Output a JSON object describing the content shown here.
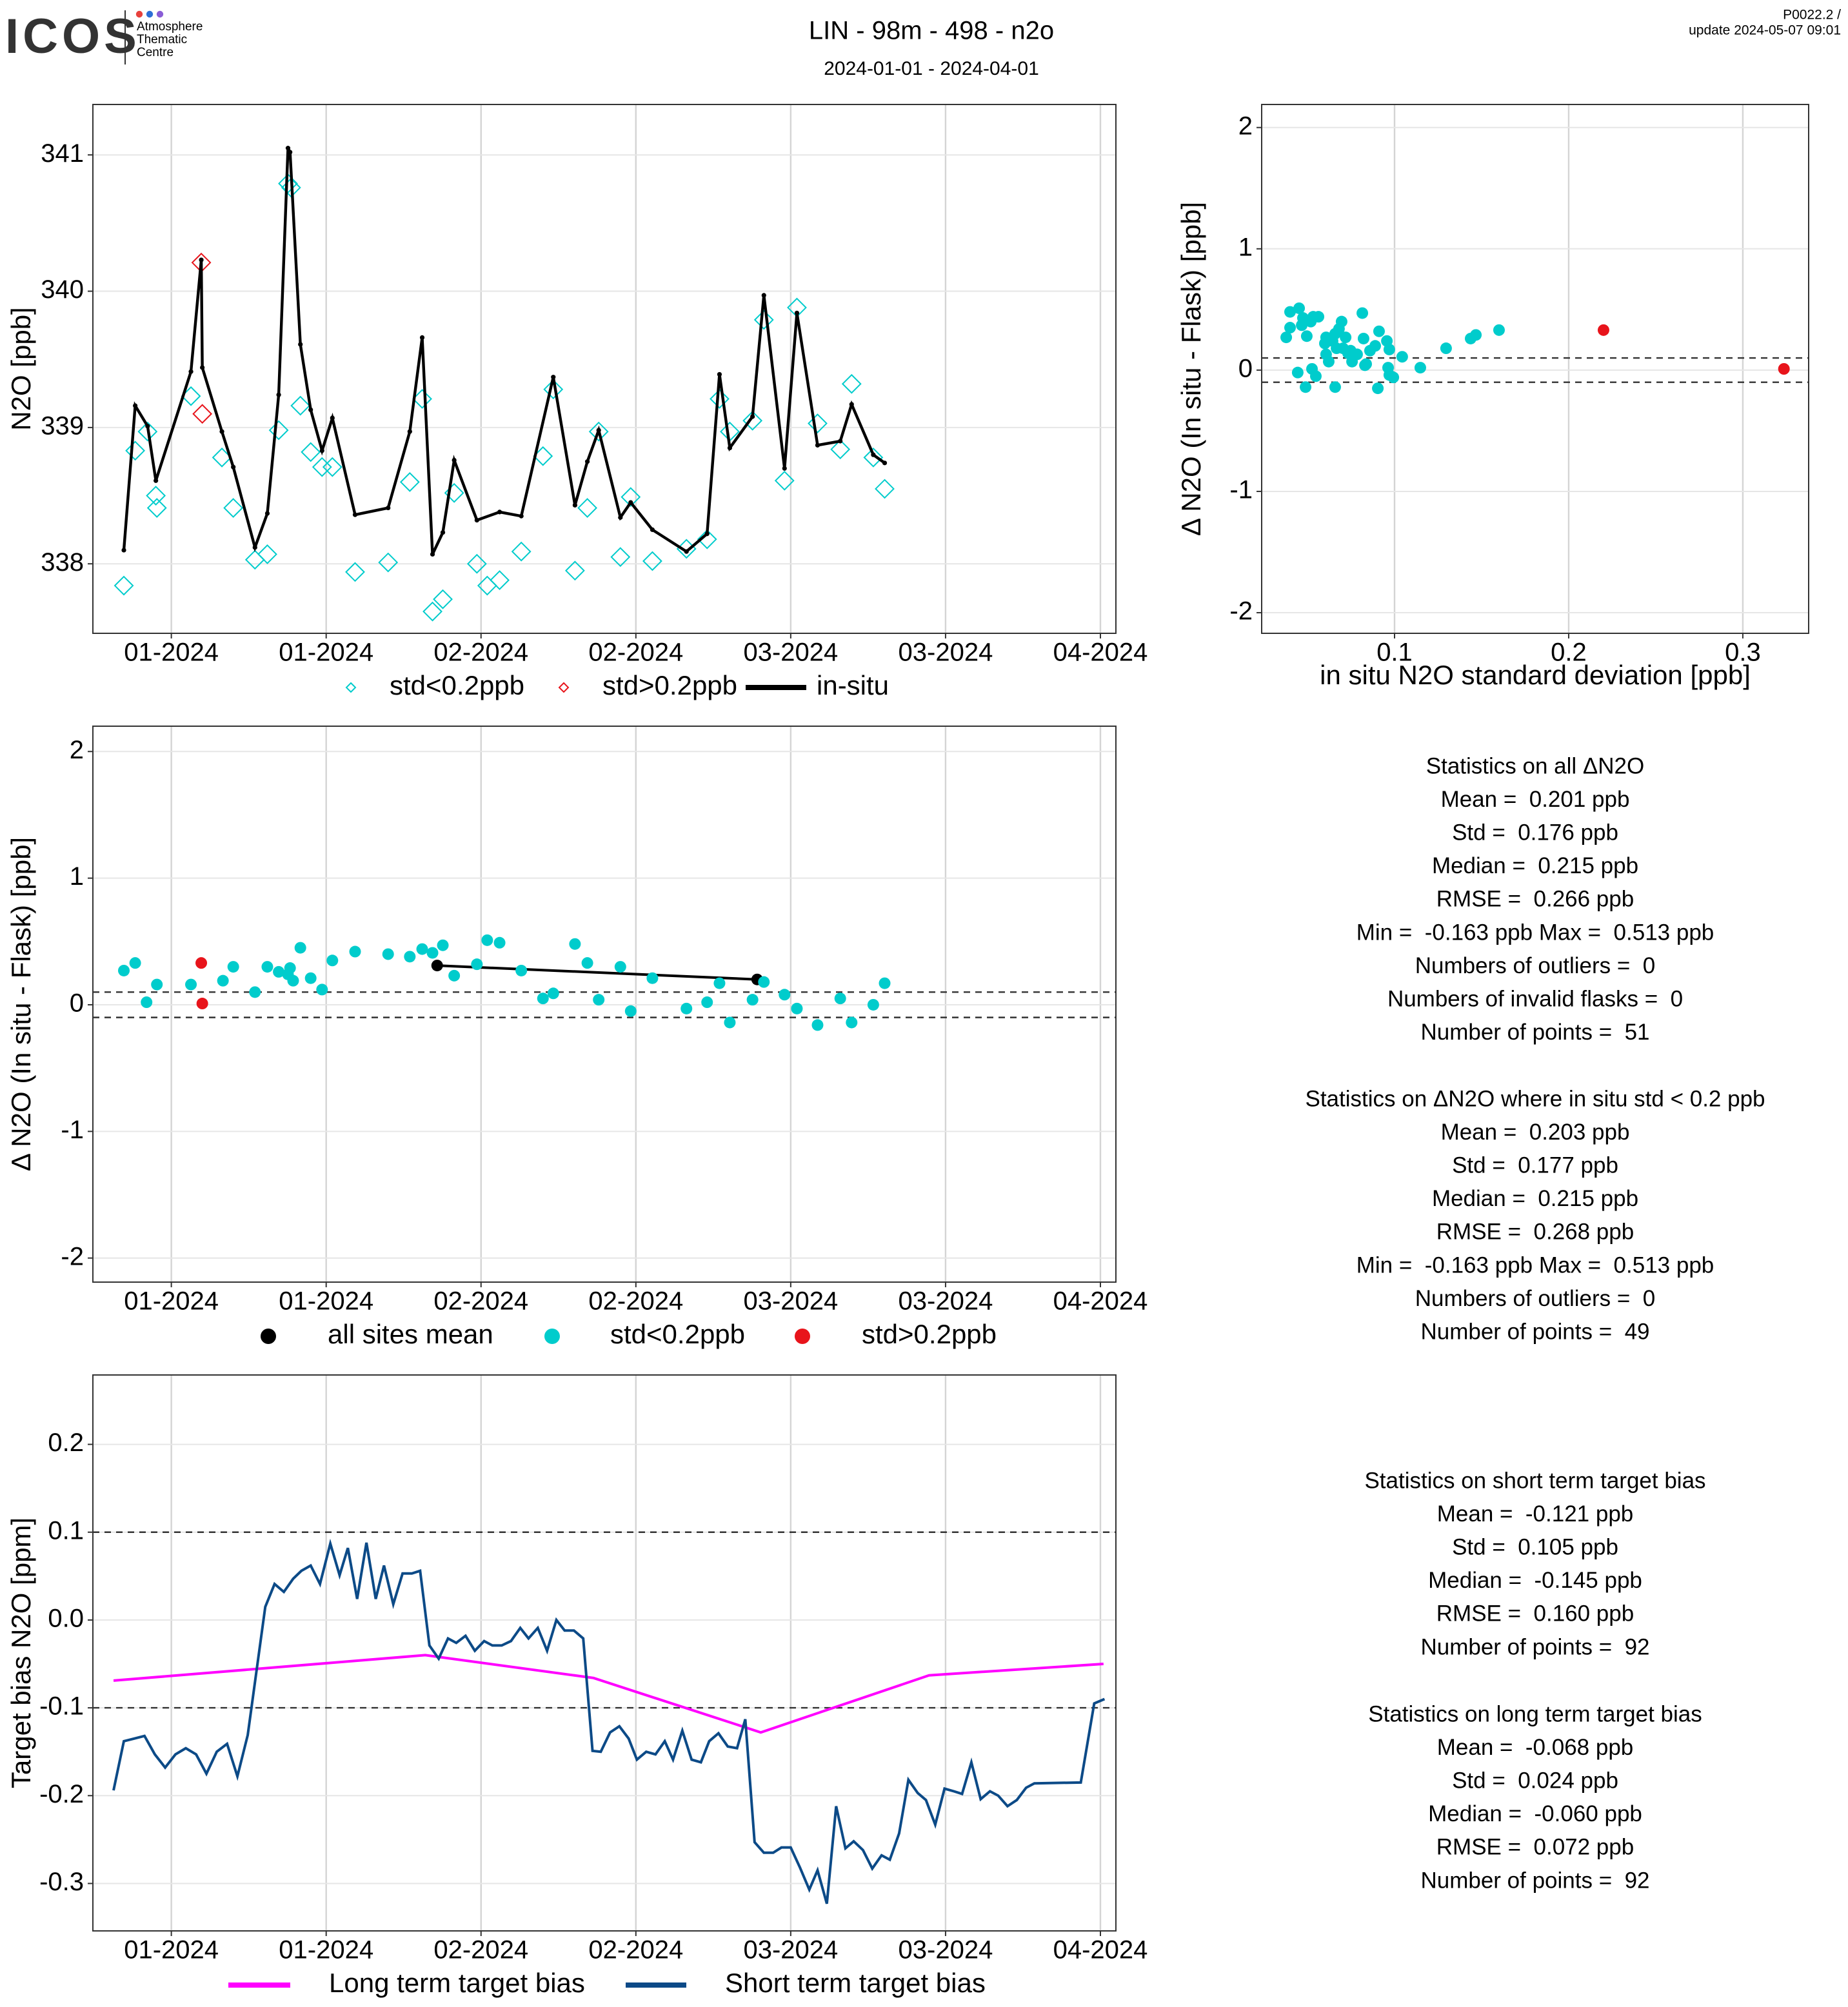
{
  "header": {
    "logo": "ICOS",
    "logo_subtitle": [
      "Atmosphere",
      "Thematic",
      "Centre"
    ],
    "title": "LIN - 98m - 498 - n2o",
    "subtitle": "2024-01-01 - 2024-04-01",
    "corner": [
      "P0022.2 /",
      "update  2024-05-07 09:01"
    ]
  },
  "chart_data": [
    {
      "type": "line",
      "ylabel": "N2O [ppb]",
      "grid": true,
      "xlim": [
        -6.6,
        92.5
      ],
      "xticks": [
        {
          "value": 1,
          "label": "01-2024"
        },
        {
          "value": 16,
          "label": "01-2024"
        },
        {
          "value": 31,
          "label": "02-2024"
        },
        {
          "value": 46,
          "label": "02-2024"
        },
        {
          "value": 61,
          "label": "03-2024"
        },
        {
          "value": 76,
          "label": "03-2024"
        },
        {
          "value": 91,
          "label": "04-2024"
        }
      ],
      "ylim": [
        337.49,
        341.37
      ],
      "yticks": [
        338,
        339,
        340,
        341
      ],
      "series": [
        {
          "name": "std<0.2ppb",
          "type": "scatter",
          "marker": "diamond",
          "color": "#00cccc",
          "x": [
            -3.6,
            -2.5,
            -1.3,
            -0.5,
            -0.4,
            2.9,
            5.9,
            7,
            9.1,
            10.3,
            11.4,
            12.3,
            12.6,
            13.5,
            14.5,
            15.6,
            16.6,
            18.8,
            22,
            24.1,
            25.3,
            26.3,
            27.3,
            28.4,
            30.6,
            31.6,
            32.8,
            34.9,
            37,
            38,
            40.1,
            41.3,
            42.4,
            44.5,
            45.5,
            47.6,
            50.9,
            52.9,
            54.1,
            55.1,
            57.3,
            58.4,
            60.4,
            61.6,
            63.6,
            65.8,
            66.9,
            69,
            70.1
          ],
          "values": [
            337.84,
            338.83,
            338.97,
            338.5,
            338.41,
            339.23,
            338.78,
            338.41,
            338.03,
            338.07,
            338.98,
            340.79,
            340.76,
            339.16,
            338.82,
            338.71,
            338.71,
            337.94,
            338.01,
            338.6,
            339.21,
            337.65,
            337.74,
            338.52,
            338.0,
            337.84,
            337.88,
            338.09,
            338.79,
            339.28,
            337.95,
            338.41,
            338.97,
            338.05,
            338.49,
            338.02,
            338.11,
            338.18,
            339.21,
            338.97,
            339.05,
            339.79,
            338.61,
            339.88,
            339.03,
            338.84,
            339.32,
            338.78,
            338.55
          ]
        },
        {
          "name": "std>0.2ppb",
          "type": "scatter",
          "marker": "diamond",
          "color": "#e8141b",
          "x": [
            3.9,
            4.0
          ],
          "values": [
            340.21,
            339.1
          ]
        },
        {
          "name": "in-situ",
          "type": "line",
          "marker": "dot",
          "color": "#000000",
          "x": [
            -3.6,
            -2.5,
            -1.3,
            -0.5,
            2.9,
            3.9,
            4,
            5.9,
            7,
            9.1,
            10.3,
            11.4,
            12.3,
            12.5,
            13.5,
            14.5,
            15.6,
            16.6,
            18.8,
            22,
            24.1,
            25.3,
            26.3,
            27.3,
            28.4,
            30.6,
            32.8,
            34.9,
            38,
            40.1,
            41.3,
            42.4,
            44.5,
            45.5,
            47.6,
            50.9,
            52.9,
            54.1,
            55.1,
            57.3,
            58.4,
            60.4,
            61.6,
            63.6,
            65.8,
            66.9,
            69,
            70.1
          ],
          "values": [
            338.1,
            339.16,
            339.01,
            338.61,
            339.41,
            340.23,
            339.44,
            338.97,
            338.71,
            338.12,
            338.37,
            339.24,
            341.05,
            341.02,
            339.61,
            339.13,
            338.83,
            339.07,
            338.36,
            338.41,
            338.97,
            339.66,
            338.07,
            338.23,
            338.76,
            338.32,
            338.38,
            338.35,
            339.37,
            338.43,
            338.75,
            338.98,
            338.34,
            338.45,
            338.25,
            338.09,
            338.22,
            339.39,
            338.85,
            339.08,
            339.97,
            338.7,
            339.84,
            338.87,
            338.9,
            339.17,
            338.8,
            338.74
          ]
        }
      ]
    },
    {
      "type": "scatter",
      "xlabel": "in situ N2O standard deviation [ppb]",
      "ylabel": "Δ N2O (In situ - Flask) [ppb]",
      "grid": true,
      "xlim": [
        0.0237,
        0.3378
      ],
      "xticks": [
        0.1,
        0.2,
        0.3
      ],
      "ylim": [
        -2.17,
        2.19
      ],
      "yticks": [
        -2,
        -1,
        0,
        1,
        2
      ],
      "reference_lines": [
        0.1,
        -0.1
      ],
      "series": [
        {
          "name": "std<0.2ppb",
          "type": "scatter",
          "marker": "circle",
          "color": "#00cccc",
          "x": [
            0.0378,
            0.04,
            0.04,
            0.0452,
            0.0467,
            0.0474,
            0.0496,
            0.0519,
            0.0533,
            0.0563,
            0.06,
            0.0607,
            0.0607,
            0.0622,
            0.0644,
            0.0659,
            0.0667,
            0.0681,
            0.0696,
            0.0704,
            0.0719,
            0.0733,
            0.0748,
            0.0756,
            0.0815,
            0.0822,
            0.0837,
            0.0859,
            0.0889,
            0.0911,
            0.0956,
            0.0963,
            0.097,
            0.1044,
            0.1148,
            0.1296,
            0.1437,
            0.1467,
            0.16,
            0.0444,
            0.0489,
            0.0526,
            0.0548,
            0.0659,
            0.083,
            0.0904,
            0.097,
            0.0993,
            0.0785
          ],
          "values": [
            0.27,
            0.48,
            0.35,
            0.51,
            0.37,
            0.43,
            0.28,
            0.4,
            0.44,
            0.44,
            0.22,
            0.27,
            0.13,
            0.07,
            0.24,
            0.3,
            0.18,
            0.34,
            0.4,
            0.18,
            0.27,
            0.14,
            0.16,
            0.07,
            0.47,
            0.26,
            0.05,
            0.16,
            0.2,
            0.32,
            0.24,
            0.02,
            0.17,
            0.11,
            0.02,
            0.18,
            0.26,
            0.29,
            0.33,
            -0.02,
            -0.14,
            0.01,
            -0.05,
            -0.14,
            0.04,
            -0.15,
            -0.04,
            -0.06,
            0.13
          ]
        },
        {
          "name": "std>0.2ppb",
          "type": "scatter",
          "marker": "circle",
          "color": "#e8141b",
          "x": [
            0.22,
            0.3236
          ],
          "values": [
            0.33,
            0.01
          ]
        }
      ]
    },
    {
      "type": "line",
      "ylabel": "Δ N2O (In situ - Flask) [ppb]",
      "grid": true,
      "xlim": [
        -6.6,
        92.5
      ],
      "xticks": [
        {
          "value": 1,
          "label": "01-2024"
        },
        {
          "value": 16,
          "label": "01-2024"
        },
        {
          "value": 31,
          "label": "02-2024"
        },
        {
          "value": 46,
          "label": "02-2024"
        },
        {
          "value": 61,
          "label": "03-2024"
        },
        {
          "value": 76,
          "label": "03-2024"
        },
        {
          "value": 91,
          "label": "04-2024"
        }
      ],
      "ylim": [
        -2.19,
        2.2
      ],
      "yticks": [
        -2,
        -1,
        0,
        1,
        2
      ],
      "reference_lines": [
        0.1,
        -0.1
      ],
      "series": [
        {
          "name": "all sites mean",
          "type": "line",
          "marker": "circle",
          "color": "#000000",
          "x": [
            26.75,
            57.75
          ],
          "values": [
            0.31,
            0.2
          ]
        },
        {
          "name": "std<0.2ppb",
          "type": "scatter",
          "marker": "circle",
          "color": "#00cccc",
          "x": [
            -3.6,
            -2.5,
            -1.4,
            -0.4,
            2.9,
            6,
            7,
            9.1,
            10.3,
            11.4,
            12.3,
            12.5,
            12.8,
            13.5,
            14.5,
            15.6,
            16.6,
            18.8,
            22,
            24.1,
            25.3,
            26.3,
            27.3,
            28.4,
            30.6,
            31.6,
            32.8,
            34.9,
            37,
            38,
            40.1,
            41.3,
            42.4,
            44.5,
            45.5,
            47.6,
            50.9,
            52.9,
            54.1,
            55.1,
            57.3,
            58.4,
            60.4,
            61.6,
            63.6,
            65.8,
            66.9,
            69,
            70.1
          ],
          "values": [
            0.27,
            0.33,
            0.02,
            0.16,
            0.16,
            0.19,
            0.3,
            0.1,
            0.3,
            0.26,
            0.24,
            0.29,
            0.19,
            0.45,
            0.21,
            0.12,
            0.35,
            0.42,
            0.4,
            0.38,
            0.44,
            0.41,
            0.47,
            0.23,
            0.32,
            0.51,
            0.49,
            0.27,
            0.05,
            0.09,
            0.48,
            0.33,
            0.04,
            0.3,
            -0.05,
            0.21,
            -0.03,
            0.02,
            0.17,
            -0.14,
            0.04,
            0.18,
            0.08,
            -0.03,
            -0.16,
            0.05,
            -0.14,
            0,
            0.17
          ]
        },
        {
          "name": "std>0.2ppb",
          "type": "scatter",
          "marker": "circle",
          "color": "#e8141b",
          "x": [
            3.9,
            4.0
          ],
          "values": [
            0.33,
            0.01
          ]
        }
      ]
    },
    {
      "type": "line",
      "ylabel": "Target bias N2O [ppm]",
      "grid": true,
      "xlim": [
        -6.6,
        92.5
      ],
      "xticks": [
        {
          "value": 1,
          "label": "01-2024"
        },
        {
          "value": 16,
          "label": "01-2024"
        },
        {
          "value": 31,
          "label": "02-2024"
        },
        {
          "value": 46,
          "label": "02-2024"
        },
        {
          "value": 61,
          "label": "03-2024"
        },
        {
          "value": 76,
          "label": "03-2024"
        },
        {
          "value": 91,
          "label": "04-2024"
        }
      ],
      "ylim": [
        -0.354,
        0.279
      ],
      "yticks": [
        -0.3,
        -0.2,
        -0.1,
        {
          "value": 0,
          "label": "0.0"
        },
        0.1,
        0.2
      ],
      "reference_lines": [
        0.1,
        -0.1
      ],
      "series": [
        {
          "name": "Long term target bias",
          "type": "line",
          "color": "#ff00ff",
          "x": [
            -4.6,
            25.6,
            41.9,
            58.1,
            74.4,
            91.3
          ],
          "values": [
            -0.069,
            -0.04,
            -0.066,
            -0.128,
            -0.063,
            -0.05
          ]
        },
        {
          "name": "Short term target bias",
          "type": "line",
          "color": "#0c4a87",
          "x": [
            -4.6,
            -3.6,
            -2.6,
            -1.6,
            -0.6,
            0.4,
            1.4,
            2.4,
            3.4,
            4.4,
            5.4,
            6.4,
            7.4,
            8.4,
            10.1,
            11,
            11.9,
            12.8,
            13.6,
            14.5,
            15.4,
            16.4,
            17.3,
            18.1,
            19,
            19.9,
            20.8,
            21.6,
            22.5,
            23.4,
            24.3,
            25.1,
            26,
            26.9,
            27.8,
            28.6,
            29.5,
            30.4,
            31.3,
            32.1,
            33,
            33.9,
            34.8,
            35.6,
            36.5,
            37.4,
            38.3,
            39.1,
            40,
            40.9,
            41.8,
            42.6,
            43.5,
            44.4,
            45.3,
            46.1,
            47,
            47.9,
            48.8,
            49.6,
            50.5,
            51.4,
            52.3,
            53.1,
            54,
            54.9,
            55.8,
            56.6,
            57.5,
            58.4,
            59.3,
            60.1,
            61,
            61.9,
            62.8,
            63.6,
            64.5,
            65.4,
            66.3,
            67.1,
            68,
            68.9,
            69.8,
            70.6,
            71.5,
            72.4,
            73.3,
            74.1,
            75,
            75.9,
            76.8,
            77.6,
            78.5,
            79.4,
            80.3,
            81.1,
            82,
            82.9,
            83.8,
            84.6,
            89.1,
            90.4,
            91.4
          ],
          "values": [
            -0.194,
            -0.138,
            -0.135,
            -0.132,
            -0.153,
            -0.168,
            -0.153,
            -0.146,
            -0.153,
            -0.175,
            -0.15,
            -0.141,
            -0.178,
            -0.131,
            0.015,
            0.041,
            0.032,
            0.047,
            0.056,
            0.062,
            0.041,
            0.087,
            0.051,
            0.082,
            0.024,
            0.088,
            0.024,
            0.062,
            0.018,
            0.053,
            0.053,
            0.056,
            -0.029,
            -0.044,
            -0.021,
            -0.026,
            -0.018,
            -0.035,
            -0.024,
            -0.029,
            -0.029,
            -0.024,
            -0.009,
            -0.021,
            -0.009,
            -0.035,
            0,
            -0.012,
            -0.012,
            -0.021,
            -0.149,
            -0.15,
            -0.128,
            -0.121,
            -0.135,
            -0.159,
            -0.15,
            -0.153,
            -0.138,
            -0.159,
            -0.126,
            -0.159,
            -0.162,
            -0.138,
            -0.129,
            -0.144,
            -0.146,
            -0.113,
            -0.253,
            -0.265,
            -0.265,
            -0.259,
            -0.259,
            -0.282,
            -0.307,
            -0.285,
            -0.323,
            -0.212,
            -0.26,
            -0.252,
            -0.262,
            -0.283,
            -0.268,
            -0.273,
            -0.243,
            -0.182,
            -0.197,
            -0.205,
            -0.233,
            -0.192,
            -0.195,
            -0.198,
            -0.162,
            -0.204,
            -0.195,
            -0.2,
            -0.212,
            -0.205,
            -0.191,
            -0.186,
            -0.185,
            -0.095,
            -0.09
          ]
        }
      ]
    }
  ],
  "stats": [
    {
      "title": "Statistics on all ΔN2O",
      "lines": [
        "Mean =  0.201 ppb",
        "Std =  0.176 ppb",
        "Median =  0.215 ppb",
        "RMSE =  0.266 ppb",
        "Min =  -0.163 ppb Max =  0.513 ppb",
        "Numbers of outliers =  0",
        "Numbers of invalid flasks =  0",
        "Number of points =  51"
      ]
    },
    {
      "title": "Statistics on ΔN2O where in situ std < 0.2 ppb",
      "lines": [
        "Mean =  0.203 ppb",
        "Std =  0.177 ppb",
        "Median =  0.215 ppb",
        "RMSE =  0.268 ppb",
        "Min =  -0.163 ppb Max =  0.513 ppb",
        "Numbers of outliers =  0",
        "Number of points =  49"
      ]
    },
    {
      "title": "Statistics on short term target bias",
      "lines": [
        "Mean =  -0.121 ppb",
        "Std =  0.105 ppb",
        "Median =  -0.145 ppb",
        "RMSE =  0.160 ppb",
        "Number of points =  92"
      ]
    },
    {
      "title": "Statistics on long term target bias",
      "lines": [
        "Mean =  -0.068 ppb",
        "Std =  0.024 ppb",
        "Median =  -0.060 ppb",
        "RMSE =  0.072 ppb",
        "Number of points =  92"
      ]
    }
  ]
}
